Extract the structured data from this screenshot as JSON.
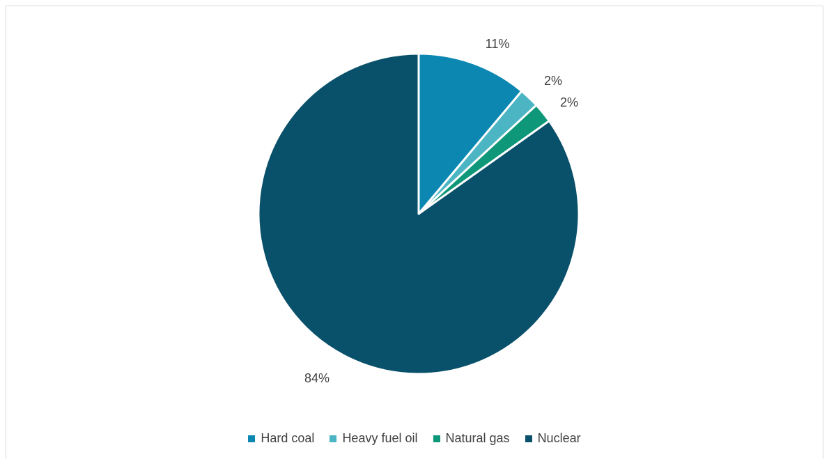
{
  "chart_data": {
    "type": "pie",
    "categories": [
      "Hard coal",
      "Heavy fuel oil",
      "Natural gas",
      "Nuclear"
    ],
    "values": [
      11,
      2,
      2,
      84
    ],
    "data_labels": [
      "11%",
      "2%",
      "2%",
      "84%"
    ],
    "colors": [
      "#0b87b1",
      "#4bb5c4",
      "#0f977a",
      "#09506a"
    ],
    "legend_position": "bottom",
    "start_angle": "12 o'clock",
    "direction": "clockwise"
  }
}
